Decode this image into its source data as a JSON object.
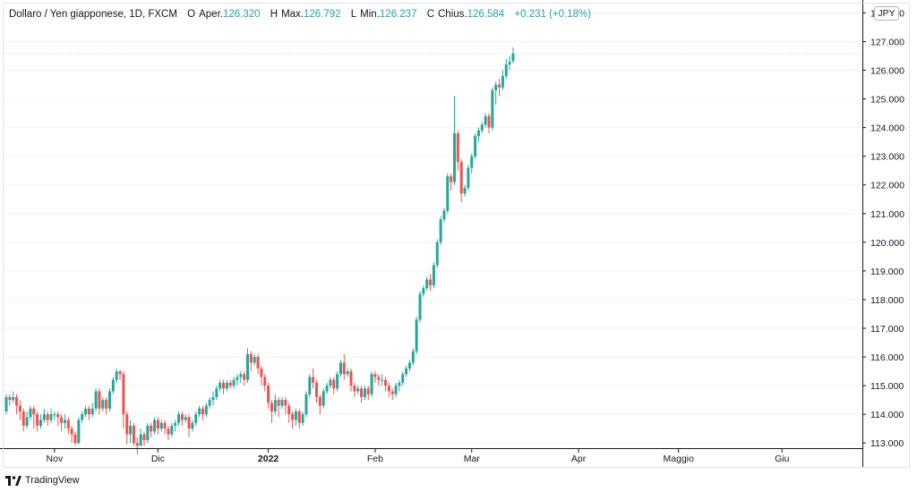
{
  "header": {
    "symbol": "Dollaro / Yen giapponese, 1D, FXCM",
    "open_label": "O",
    "open_text": "Aper.",
    "open_value": "126.320",
    "high_label": "H",
    "high_text": "Max.",
    "high_value": "126.792",
    "low_label": "L",
    "low_text": "Min.",
    "low_value": "126.237",
    "close_label": "C",
    "close_text": "Chius.",
    "close_value": "126.584",
    "change": "+0.231 (+0.18%)"
  },
  "currency_badge": "JPY",
  "footer": {
    "brand": "TradingView"
  },
  "colors": {
    "up": "#26a69a",
    "down": "#ef5350",
    "axis": "#131722",
    "grid": "#f0f3fa"
  },
  "chart_data": {
    "type": "candlestick",
    "title": "Dollaro / Yen giapponese, 1D, FXCM",
    "ylim": [
      112.85,
      128.2
    ],
    "yticks": [
      "113.000",
      "114.000",
      "115.000",
      "116.000",
      "117.000",
      "118.000",
      "119.000",
      "120.000",
      "121.000",
      "122.000",
      "123.000",
      "124.000",
      "125.000",
      "126.000",
      "127.000",
      "128.000"
    ],
    "xlabels": [
      {
        "label": "Nov",
        "index": 14
      },
      {
        "label": "Dic",
        "index": 44
      },
      {
        "label": "2022",
        "index": 76
      },
      {
        "label": "Feb",
        "index": 107
      },
      {
        "label": "Mar",
        "index": 135
      },
      {
        "label": "Apr",
        "index": 166
      },
      {
        "label": "Maggio",
        "index": 195
      },
      {
        "label": "Giu",
        "index": 225
      }
    ],
    "candles": [
      [
        114.1,
        114.6,
        114.0,
        114.7
      ],
      [
        114.6,
        114.5,
        114.3,
        114.7
      ],
      [
        114.5,
        114.6,
        114.4,
        114.8
      ],
      [
        114.6,
        114.3,
        114.0,
        114.7
      ],
      [
        114.3,
        114.1,
        113.8,
        114.5
      ],
      [
        114.1,
        113.6,
        113.4,
        114.2
      ],
      [
        113.6,
        113.9,
        113.5,
        114.1
      ],
      [
        113.9,
        114.2,
        113.8,
        114.3
      ],
      [
        114.2,
        114.0,
        113.5,
        114.3
      ],
      [
        114.0,
        113.6,
        113.4,
        114.1
      ],
      [
        113.6,
        113.8,
        113.5,
        114.0
      ],
      [
        113.8,
        114.0,
        113.7,
        114.2
      ],
      [
        114.0,
        113.8,
        113.6,
        114.1
      ],
      [
        113.8,
        114.0,
        113.7,
        114.2
      ],
      [
        114.0,
        114.0,
        113.8,
        114.1
      ],
      [
        114.0,
        113.9,
        113.6,
        114.1
      ],
      [
        113.9,
        113.7,
        113.4,
        114.0
      ],
      [
        113.7,
        113.8,
        113.5,
        114.0
      ],
      [
        113.8,
        113.5,
        113.3,
        113.9
      ],
      [
        113.5,
        113.3,
        113.0,
        113.6
      ],
      [
        113.3,
        113.0,
        112.9,
        113.4
      ],
      [
        113.0,
        113.8,
        112.95,
        113.9
      ],
      [
        113.8,
        114.0,
        113.7,
        114.1
      ],
      [
        114.0,
        114.2,
        113.9,
        114.3
      ],
      [
        114.2,
        114.0,
        113.8,
        114.3
      ],
      [
        114.0,
        114.2,
        113.9,
        114.4
      ],
      [
        114.2,
        114.8,
        114.1,
        114.9
      ],
      [
        114.8,
        114.2,
        114.0,
        114.9
      ],
      [
        114.2,
        114.5,
        114.1,
        114.6
      ],
      [
        114.5,
        114.2,
        114.0,
        114.6
      ],
      [
        114.2,
        114.8,
        114.1,
        114.9
      ],
      [
        114.8,
        115.2,
        114.7,
        115.3
      ],
      [
        115.2,
        115.5,
        115.1,
        115.6
      ],
      [
        115.5,
        115.4,
        115.2,
        115.55
      ],
      [
        115.4,
        114.0,
        113.5,
        115.5
      ],
      [
        114.0,
        113.3,
        112.95,
        114.1
      ],
      [
        113.3,
        113.6,
        113.0,
        113.8
      ],
      [
        113.6,
        113.0,
        112.9,
        113.7
      ],
      [
        113.0,
        112.9,
        112.6,
        113.2
      ],
      [
        112.9,
        113.3,
        112.9,
        113.5
      ],
      [
        113.3,
        113.1,
        112.9,
        113.4
      ],
      [
        113.1,
        113.6,
        113.0,
        113.7
      ],
      [
        113.6,
        113.4,
        113.2,
        113.7
      ],
      [
        113.4,
        113.8,
        113.3,
        113.9
      ],
      [
        113.8,
        113.5,
        113.3,
        113.9
      ],
      [
        113.5,
        113.7,
        113.4,
        113.8
      ],
      [
        113.7,
        113.5,
        113.3,
        113.8
      ],
      [
        113.5,
        113.3,
        113.1,
        113.6
      ],
      [
        113.3,
        113.6,
        113.2,
        113.7
      ],
      [
        113.6,
        113.7,
        113.4,
        113.8
      ],
      [
        113.7,
        114.0,
        113.6,
        114.1
      ],
      [
        114.0,
        113.8,
        113.6,
        114.1
      ],
      [
        113.8,
        113.9,
        113.7,
        114.0
      ],
      [
        113.9,
        113.5,
        113.2,
        114.0
      ],
      [
        113.5,
        113.7,
        113.4,
        113.8
      ],
      [
        113.7,
        114.0,
        113.6,
        114.1
      ],
      [
        114.0,
        114.2,
        113.9,
        114.3
      ],
      [
        114.2,
        114.0,
        113.8,
        114.3
      ],
      [
        114.0,
        114.3,
        113.9,
        114.4
      ],
      [
        114.3,
        114.5,
        114.2,
        114.6
      ],
      [
        114.5,
        114.6,
        114.3,
        114.8
      ],
      [
        114.6,
        114.9,
        114.5,
        115.0
      ],
      [
        114.9,
        115.1,
        114.8,
        115.2
      ],
      [
        115.1,
        114.9,
        114.7,
        115.2
      ],
      [
        114.9,
        115.1,
        114.8,
        115.2
      ],
      [
        115.1,
        115.0,
        114.9,
        115.2
      ],
      [
        115.0,
        115.2,
        114.9,
        115.3
      ],
      [
        115.2,
        115.3,
        115.0,
        115.4
      ],
      [
        115.3,
        115.4,
        115.1,
        115.5
      ],
      [
        115.4,
        115.2,
        115.0,
        115.5
      ],
      [
        115.2,
        116.1,
        115.1,
        116.3
      ],
      [
        116.1,
        115.8,
        115.5,
        116.2
      ],
      [
        115.8,
        116.0,
        115.7,
        116.1
      ],
      [
        116.0,
        115.6,
        115.4,
        116.1
      ],
      [
        115.6,
        115.3,
        115.0,
        115.7
      ],
      [
        115.3,
        115.0,
        114.8,
        115.4
      ],
      [
        115.0,
        114.4,
        114.2,
        115.1
      ],
      [
        114.4,
        114.1,
        113.7,
        114.5
      ],
      [
        114.1,
        114.5,
        114.0,
        114.7
      ],
      [
        114.5,
        114.3,
        113.9,
        114.6
      ],
      [
        114.3,
        114.5,
        114.2,
        114.6
      ],
      [
        114.5,
        114.3,
        114.0,
        114.6
      ],
      [
        114.3,
        114.0,
        113.7,
        114.4
      ],
      [
        114.0,
        113.8,
        113.5,
        114.1
      ],
      [
        113.8,
        114.1,
        113.6,
        114.2
      ],
      [
        114.1,
        113.7,
        113.5,
        114.2
      ],
      [
        113.7,
        114.0,
        113.6,
        114.1
      ],
      [
        114.0,
        114.7,
        113.9,
        114.8
      ],
      [
        114.7,
        115.3,
        114.6,
        115.4
      ],
      [
        115.3,
        115.1,
        114.9,
        115.6
      ],
      [
        115.1,
        114.6,
        114.4,
        115.2
      ],
      [
        114.6,
        114.3,
        114.0,
        114.7
      ],
      [
        114.3,
        114.8,
        114.2,
        114.9
      ],
      [
        114.8,
        115.0,
        114.7,
        115.1
      ],
      [
        115.0,
        115.2,
        114.9,
        115.3
      ],
      [
        115.2,
        114.9,
        114.7,
        115.3
      ],
      [
        114.9,
        115.4,
        114.8,
        115.5
      ],
      [
        115.4,
        115.8,
        115.3,
        115.9
      ],
      [
        115.8,
        115.4,
        115.2,
        116.1
      ],
      [
        115.4,
        115.5,
        115.3,
        115.6
      ],
      [
        115.5,
        115.0,
        114.8,
        115.6
      ],
      [
        115.0,
        114.8,
        114.6,
        115.1
      ],
      [
        114.8,
        114.9,
        114.7,
        115.0
      ],
      [
        114.9,
        114.6,
        114.4,
        115.0
      ],
      [
        114.6,
        114.9,
        114.5,
        115.0
      ],
      [
        114.9,
        114.7,
        114.5,
        115.0
      ],
      [
        114.7,
        115.4,
        114.6,
        115.5
      ],
      [
        115.4,
        115.3,
        115.1,
        115.5
      ],
      [
        115.3,
        115.2,
        115.0,
        115.4
      ],
      [
        115.2,
        115.2,
        115.0,
        115.4
      ],
      [
        115.2,
        115.0,
        114.8,
        115.3
      ],
      [
        115.0,
        114.8,
        114.6,
        115.1
      ],
      [
        114.8,
        114.7,
        114.5,
        114.9
      ],
      [
        114.7,
        115.0,
        114.6,
        115.1
      ],
      [
        115.0,
        115.1,
        114.8,
        115.2
      ],
      [
        115.1,
        115.4,
        115.0,
        115.5
      ],
      [
        115.4,
        115.6,
        115.3,
        115.7
      ],
      [
        115.6,
        115.8,
        115.5,
        115.9
      ],
      [
        115.8,
        116.2,
        115.7,
        116.3
      ],
      [
        116.2,
        117.3,
        116.1,
        117.4
      ],
      [
        117.3,
        118.2,
        117.2,
        118.3
      ],
      [
        118.2,
        118.4,
        118.1,
        118.5
      ],
      [
        118.4,
        118.7,
        118.3,
        118.8
      ],
      [
        118.7,
        118.5,
        118.3,
        118.9
      ],
      [
        118.5,
        119.2,
        118.4,
        119.3
      ],
      [
        119.2,
        120.0,
        119.1,
        120.1
      ],
      [
        120.0,
        120.8,
        119.9,
        120.9
      ],
      [
        120.8,
        121.1,
        120.7,
        121.2
      ],
      [
        121.1,
        122.3,
        121.0,
        122.4
      ],
      [
        122.3,
        122.1,
        121.8,
        122.4
      ],
      [
        122.1,
        123.8,
        122.0,
        125.1
      ],
      [
        123.8,
        122.8,
        122.5,
        123.9
      ],
      [
        122.8,
        121.7,
        121.4,
        122.9
      ],
      [
        121.7,
        121.9,
        121.6,
        122.0
      ],
      [
        121.9,
        122.6,
        121.8,
        122.7
      ],
      [
        122.6,
        123.0,
        122.4,
        123.1
      ],
      [
        123.0,
        123.7,
        122.9,
        123.8
      ],
      [
        123.7,
        123.9,
        123.5,
        124.0
      ],
      [
        123.9,
        124.1,
        123.8,
        124.2
      ],
      [
        124.1,
        124.4,
        124.0,
        124.5
      ],
      [
        124.4,
        124.0,
        123.8,
        124.5
      ],
      [
        124.0,
        125.3,
        123.9,
        125.4
      ],
      [
        125.3,
        125.5,
        124.8,
        125.6
      ],
      [
        125.5,
        125.4,
        125.1,
        125.7
      ],
      [
        125.4,
        125.8,
        125.3,
        126.0
      ],
      [
        125.8,
        126.2,
        125.7,
        126.4
      ],
      [
        126.2,
        126.3,
        126.0,
        126.5
      ],
      [
        126.32,
        126.58,
        126.24,
        126.79
      ]
    ]
  }
}
